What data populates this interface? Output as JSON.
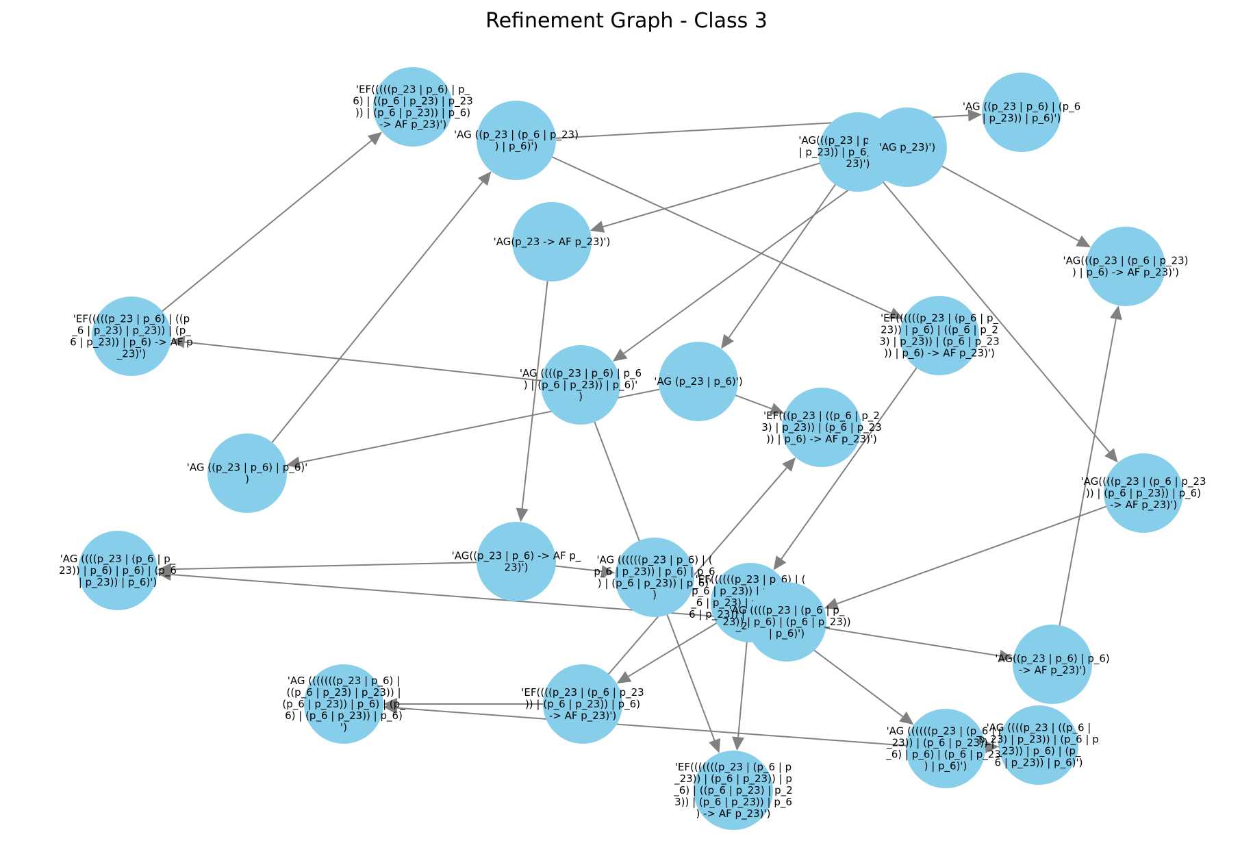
{
  "title": "Refinement Graph - Class 3",
  "colors": {
    "node": "#87ceeb",
    "edge": "#808080",
    "background": "#ffffff"
  },
  "nodes": [
    {
      "id": "n1",
      "lines": [
        "'EF(((((p_23 | p_6) | p_",
        "6) | ((p_6 | p_23) | p_23",
        ")) | (p_6 | p_23)) | p_6)",
        "-> AF p_23)')"
      ]
    },
    {
      "id": "n2",
      "lines": [
        "'AG ((p_23 | (p_6 | p_23)",
        ") | p_6)')"
      ]
    },
    {
      "id": "n3",
      "lines": [
        "'AG(((p_23 | p_6) | (p_6",
        "| p_23)) | p_6) -> AF p_",
        "23)')"
      ]
    },
    {
      "id": "n4",
      "lines": [
        "'AG p_23)')"
      ]
    },
    {
      "id": "n5",
      "lines": [
        "'AG ((p_23 | p_6) | (p_6",
        "| p_23)) | p_6)')"
      ]
    },
    {
      "id": "n6",
      "lines": [
        "'AG(p_23 -> AF p_23)')"
      ]
    },
    {
      "id": "n7",
      "lines": [
        "'AG(((p_23 | (p_6 | p_23)",
        ") | p_6) -> AF p_23)')"
      ]
    },
    {
      "id": "n8",
      "lines": [
        "'EF(((((p_23 | p_6) | ((p",
        "_6 | p_23) | p_23)) | (p_",
        "6 | p_23)) | p_6) -> AF p",
        "_23)')"
      ]
    },
    {
      "id": "n9",
      "lines": [
        "'EF((((((p_23 | (p_6 | p_",
        "23)) | p_6) | ((p_6 | p_2",
        "3) | p_23)) | (p_6 | p_23",
        ")) | p_6) -> AF p_23)')"
      ]
    },
    {
      "id": "n10",
      "lines": [
        "'AG ((((p_23 | p_6) | p_6",
        ") | (p_6 | p_23)) | p_6)'",
        ")"
      ]
    },
    {
      "id": "n11",
      "lines": [
        "'AG (p_23 | p_6)')"
      ]
    },
    {
      "id": "n12",
      "lines": [
        "'EF(((p_23 | ((p_6 | p_2",
        "3) | p_23)) | (p_6 | p_23",
        ")) | p_6) -> AF p_23)')"
      ]
    },
    {
      "id": "n13",
      "lines": [
        "'AG ((p_23 | p_6) | p_6)'",
        ")"
      ]
    },
    {
      "id": "n14",
      "lines": [
        "'AG((((p_23 | (p_6 | p_23",
        ")) | (p_6 | p_23)) | p_6)",
        "-> AF p_23)')"
      ]
    },
    {
      "id": "n15",
      "lines": [
        "'AG ((((p_23 | (p_6 | p_",
        "23)) | p_6) | p_6) | (p_6",
        "| p_23)) | p_6)')"
      ]
    },
    {
      "id": "n16",
      "lines": [
        "'AG((p_23 | p_6) -> AF p_",
        "23)')"
      ]
    },
    {
      "id": "n17",
      "lines": [
        "'AG ((((((p_23 | p_6) | (",
        "p_6 | p_23)) | p_6) | p_6",
        ") | (p_6 | p_23)) | p_6)'",
        ")"
      ]
    },
    {
      "id": "n18",
      "lines": [
        "'EF((((((p_23 | p_6) | (",
        "p_6 | p_23)) | p_6) | ((p",
        "_6 | p_23) | p_23)) | (p_",
        "6 | p_23)) | p_6) -> AF p",
        "_23)')"
      ]
    },
    {
      "id": "n19",
      "lines": [
        "'AG ((((p_23 | (p_6 | p_",
        "23)) | p_6) | (p_6 | p_23))",
        "| p_6)')"
      ]
    },
    {
      "id": "n20",
      "lines": [
        "'AG((p_23 | p_6) | p_6)",
        "-> AF p_23)')"
      ]
    },
    {
      "id": "n21",
      "lines": [
        "'AG (((((((p_23 | p_6) |",
        "((p_6 | p_23) | p_23)) |",
        "(p_6 | p_23)) | p_6) | (p_",
        "6) | (p_6 | p_23)) | p_6)",
        "')"
      ]
    },
    {
      "id": "n22",
      "lines": [
        "'EF((((p_23 | (p_6 | p_23",
        ")) | (p_6 | p_23)) | p_6)",
        "-> AF p_23)')"
      ]
    },
    {
      "id": "n23",
      "lines": [
        "'EF(((((((p_23 | (p_6 | p",
        "_23)) | (p_6 | p_23)) | p",
        "_6) | ((p_6 | p_23) | p_2",
        "3)) | (p_6 | p_23)) | p_6",
        ") -> AF p_23)')"
      ]
    },
    {
      "id": "n24",
      "lines": [
        "'AG ((((((p_23 | (p_6 | p",
        "_23)) | (p_6 | p_23)) | p",
        "_6) | p_6) | (p_6 | p_23)",
        ") | p_6)')"
      ]
    },
    {
      "id": "n25",
      "lines": [
        "'AG ((((p_23 | ((p_6 |",
        "p_23) | p_23)) | (p_6 | p",
        "_23)) | p_6) | (p_",
        "6 | p_23)) | p_6)')"
      ]
    }
  ],
  "edges": [
    [
      "n8",
      "n1"
    ],
    [
      "n2",
      "n5"
    ],
    [
      "n2",
      "n9"
    ],
    [
      "n3",
      "n6"
    ],
    [
      "n3",
      "n11"
    ],
    [
      "n3",
      "n14"
    ],
    [
      "n4",
      "n10"
    ],
    [
      "n4",
      "n7"
    ],
    [
      "n6",
      "n16"
    ],
    [
      "n10",
      "n8"
    ],
    [
      "n10",
      "n23"
    ],
    [
      "n11",
      "n13"
    ],
    [
      "n11",
      "n12"
    ],
    [
      "n13",
      "n2"
    ],
    [
      "n9",
      "n18"
    ],
    [
      "n16",
      "n15"
    ],
    [
      "n16",
      "n17"
    ],
    [
      "n14",
      "n19"
    ],
    [
      "n20",
      "n7"
    ],
    [
      "n19",
      "n15"
    ],
    [
      "n19",
      "n20"
    ],
    [
      "n18",
      "n22"
    ],
    [
      "n18",
      "n23"
    ],
    [
      "n18",
      "n24"
    ],
    [
      "n22",
      "n12"
    ],
    [
      "n22",
      "n21"
    ],
    [
      "n24",
      "n21"
    ],
    [
      "n24",
      "n25"
    ]
  ]
}
